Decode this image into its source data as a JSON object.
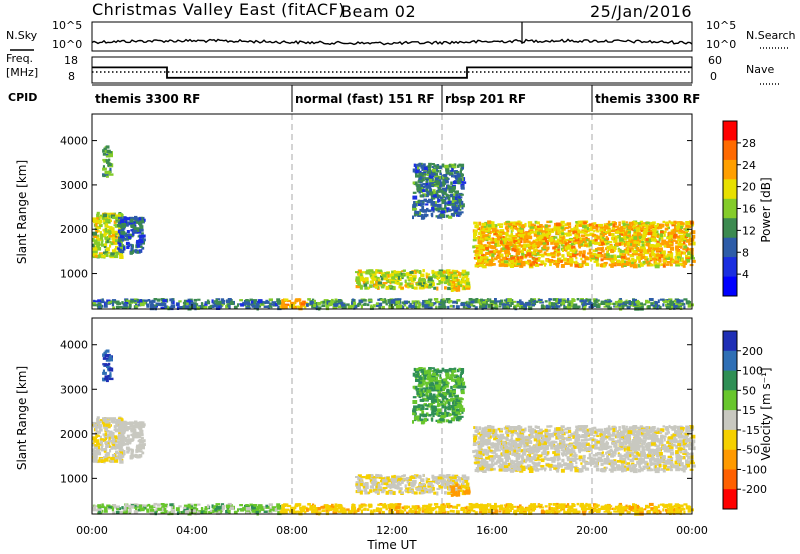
{
  "header": {
    "title": "Christmas Valley East (fitACF)",
    "beam": "Beam 02",
    "date": "25/Jan/2016"
  },
  "strip_labels": {
    "nsky": "N.Sky",
    "nsearch": "N.Search",
    "freq": "Freq.",
    "freq_unit": "[MHz]",
    "nave": "Nave",
    "cpid": "CPID"
  },
  "strip_ticks": {
    "noise_top": "10^5",
    "noise_bottom": "10^0",
    "freq_top": "18",
    "freq_bottom": "8",
    "nave_top": "60",
    "nave_bottom": "0"
  },
  "programs": [
    {
      "name": "themis 3300 RF",
      "start_hour": 0
    },
    {
      "name": "normal (fast) 151 RF",
      "start_hour": 8
    },
    {
      "name": "rbsp 201 RF",
      "start_hour": 14
    },
    {
      "name": "themis 3300 RF",
      "start_hour": 20
    }
  ],
  "power_panel": {
    "ylabel": "Slant Range [km]",
    "cbar_label": "Power [dB]",
    "cbar_ticks": [
      "28",
      "24",
      "20",
      "16",
      "12",
      "8",
      "4"
    ],
    "cbar_colors": [
      "#ff0000",
      "#ff6a00",
      "#ff9f00",
      "#e8e000",
      "#84cc2a",
      "#3c8a50",
      "#2d5ca8",
      "#1a2ee0",
      "#0000ff"
    ]
  },
  "velocity_panel": {
    "ylabel": "Slant Range [km]",
    "cbar_label": "Velocity [m s⁻¹]",
    "cbar_ticks": [
      "200",
      "100",
      "50",
      "15",
      "-15",
      "-50",
      "-100",
      "-200"
    ],
    "cbar_colors": [
      "#1f2fb5",
      "#2f6fb5",
      "#2f8f55",
      "#68c62c",
      "#c8c8c0",
      "#f5d000",
      "#ff9a00",
      "#ff6000",
      "#ff0000"
    ]
  },
  "yticks": [
    "4000",
    "3000",
    "2000",
    "1000"
  ],
  "xticks": [
    "00:00",
    "04:00",
    "08:00",
    "12:00",
    "16:00",
    "20:00",
    "00:00"
  ],
  "xlabel": "Time UT",
  "chart_data": {
    "type": "heatmap",
    "title": "Christmas Valley East (fitACF)",
    "subtitle": "Beam 02",
    "date": "25/Jan/2016",
    "xlabel": "Time UT",
    "ylabel": "Slant Range [km]",
    "xlim_hours": [
      0,
      24
    ],
    "ylim_km": [
      200,
      4600
    ],
    "frequency_mhz": [
      {
        "from_hour": 0,
        "to_hour": 3,
        "value": 14
      },
      {
        "from_hour": 3,
        "to_hour": 15,
        "value": 10
      },
      {
        "from_hour": 15,
        "to_hour": 24,
        "value": 14
      }
    ],
    "power_colorbar": {
      "label": "Power [dB]",
      "ticks": [
        4,
        8,
        12,
        16,
        20,
        24,
        28
      ]
    },
    "velocity_colorbar": {
      "label": "Velocity [m s⁻¹]",
      "ticks": [
        -200,
        -100,
        -50,
        -15,
        15,
        50,
        100,
        200
      ]
    },
    "echo_regions": [
      {
        "t0": 0.0,
        "t1": 1.2,
        "r0": 1400,
        "r1": 2400,
        "power_db": 18,
        "velocity": -10
      },
      {
        "t0": 0.4,
        "t1": 0.7,
        "r0": 3200,
        "r1": 3900,
        "power_db": 14,
        "velocity": 150
      },
      {
        "t0": 1.0,
        "t1": 2.0,
        "r0": 1500,
        "r1": 2300,
        "power_db": 8,
        "velocity": 0
      },
      {
        "t0": 0.0,
        "t1": 7.5,
        "r0": 250,
        "r1": 450,
        "power_db": 10,
        "velocity": 20
      },
      {
        "t0": 7.5,
        "t1": 8.5,
        "r0": 250,
        "r1": 450,
        "power_db": 24,
        "velocity": -30
      },
      {
        "t0": 8.5,
        "t1": 24.0,
        "r0": 250,
        "r1": 450,
        "power_db": 12,
        "velocity": -40
      },
      {
        "t0": 10.5,
        "t1": 15.0,
        "r0": 700,
        "r1": 1100,
        "power_db": 18,
        "velocity": -10
      },
      {
        "t0": 14.3,
        "t1": 15.0,
        "r0": 650,
        "r1": 900,
        "power_db": 20,
        "velocity": -60
      },
      {
        "t0": 12.8,
        "t1": 14.8,
        "r0": 2300,
        "r1": 3500,
        "power_db": 10,
        "velocity": 30
      },
      {
        "t0": 15.2,
        "t1": 24.0,
        "r0": 1200,
        "r1": 2200,
        "power_db": 22,
        "velocity": -5
      }
    ]
  }
}
